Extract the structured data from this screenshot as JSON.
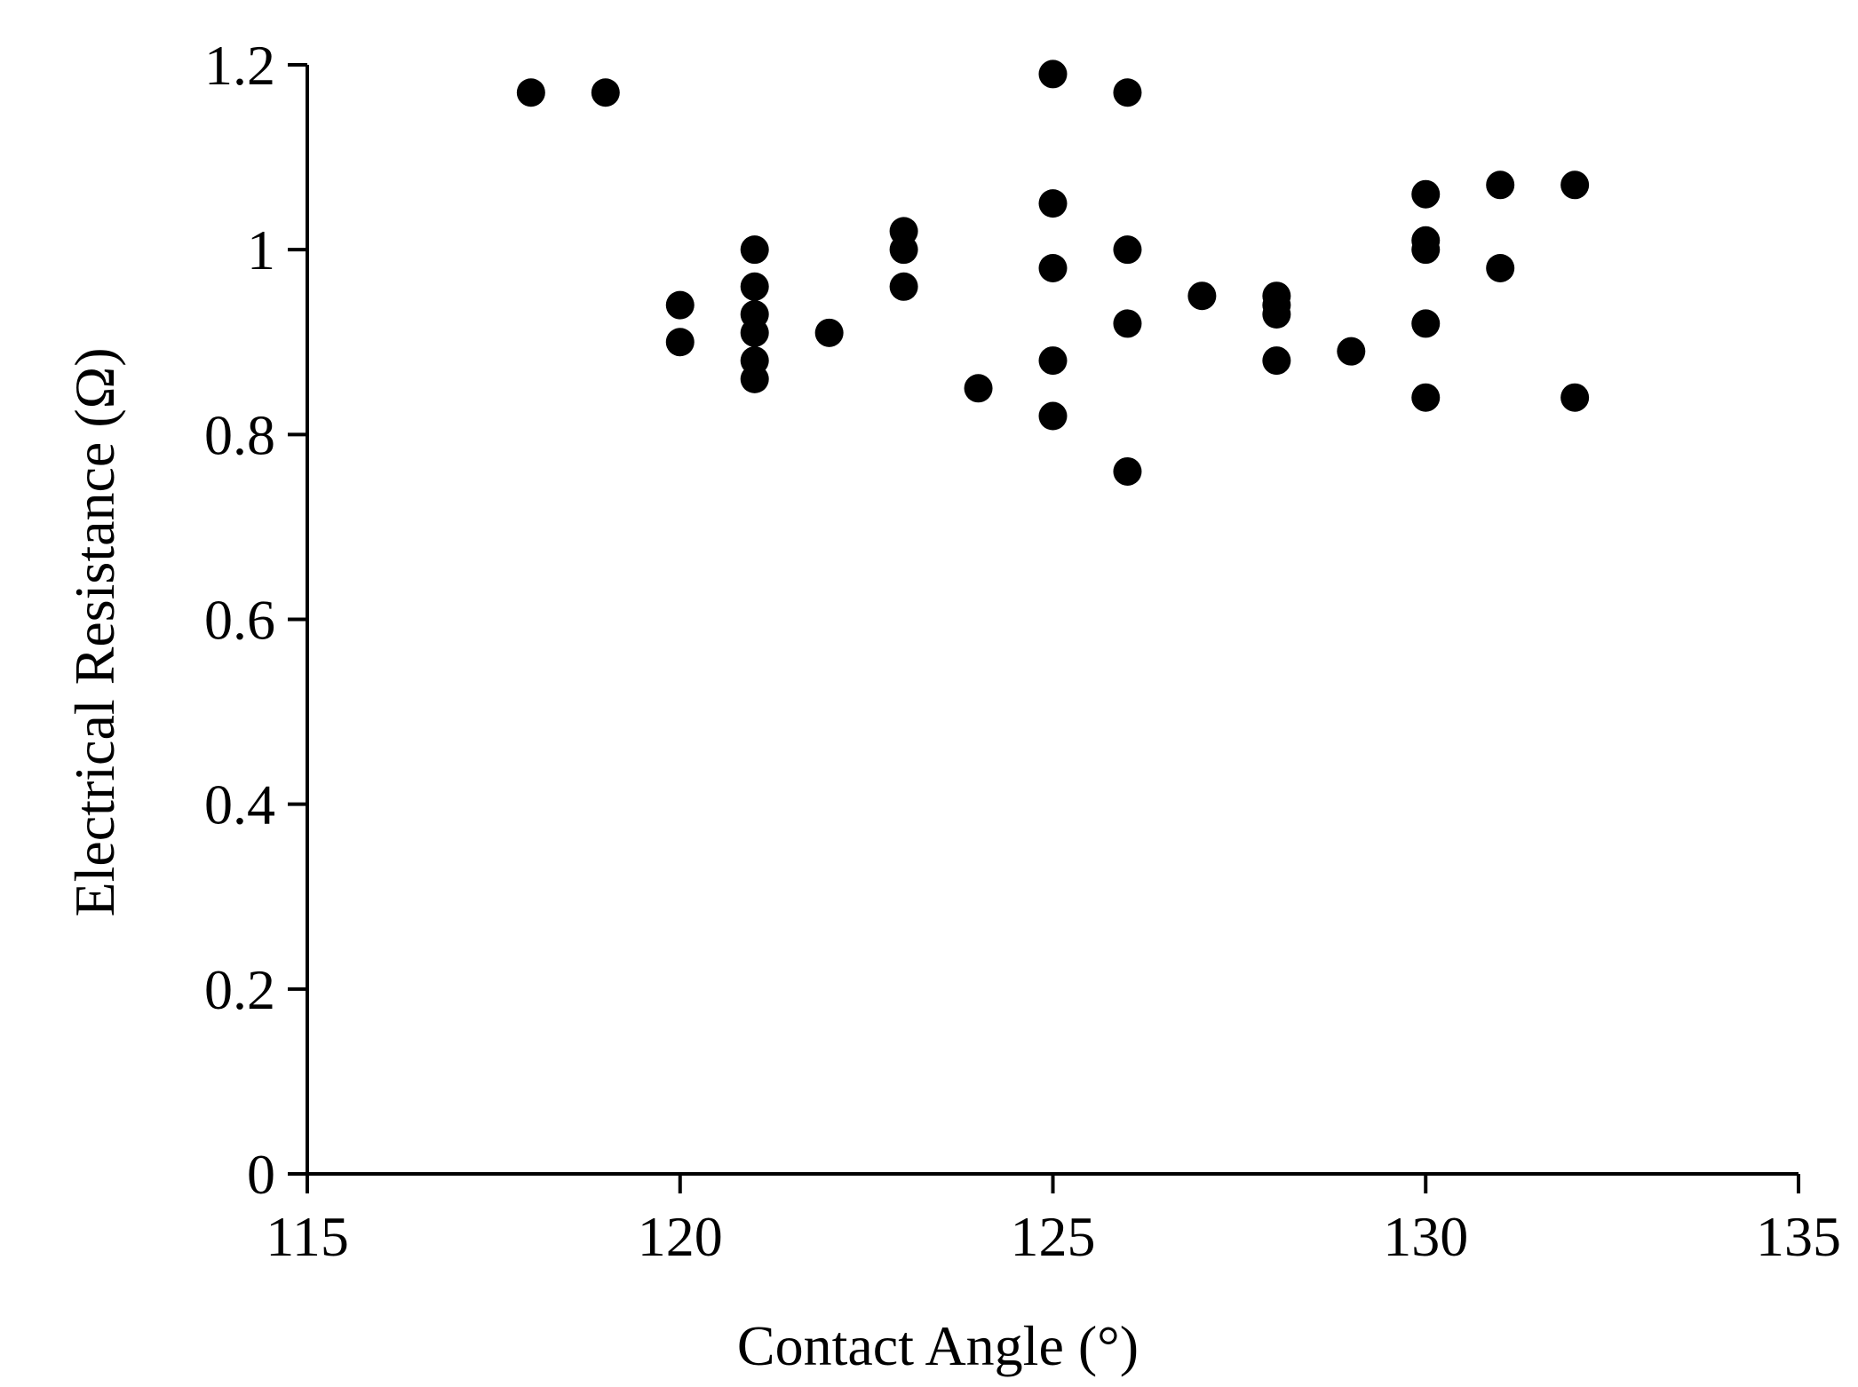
{
  "chart_data": {
    "type": "scatter",
    "title": "",
    "xlabel": "Contact Angle (°)",
    "ylabel": "Electrical Resistance (Ω)",
    "xlim": [
      115,
      135
    ],
    "ylim": [
      0,
      1.2
    ],
    "x_ticks": [
      115,
      120,
      125,
      130,
      135
    ],
    "y_ticks": [
      0,
      0.2,
      0.4,
      0.6,
      0.8,
      1,
      1.2
    ],
    "x_tick_labels": [
      "115",
      "120",
      "125",
      "130",
      "135"
    ],
    "y_tick_labels": [
      "0",
      "0.2",
      "0.4",
      "0.6",
      "0.8",
      "1",
      "1.2"
    ],
    "grid": false,
    "legend": "none",
    "marker_color": "#000000",
    "axis_color": "#000000",
    "points": [
      {
        "x": 118,
        "y": 1.17
      },
      {
        "x": 119,
        "y": 1.17
      },
      {
        "x": 120,
        "y": 0.94
      },
      {
        "x": 120,
        "y": 0.9
      },
      {
        "x": 121,
        "y": 1.0
      },
      {
        "x": 121,
        "y": 0.96
      },
      {
        "x": 121,
        "y": 0.93
      },
      {
        "x": 121,
        "y": 0.91
      },
      {
        "x": 121,
        "y": 0.88
      },
      {
        "x": 121,
        "y": 0.86
      },
      {
        "x": 122,
        "y": 0.91
      },
      {
        "x": 123,
        "y": 1.02
      },
      {
        "x": 123,
        "y": 1.0
      },
      {
        "x": 123,
        "y": 0.96
      },
      {
        "x": 124,
        "y": 0.85
      },
      {
        "x": 125,
        "y": 1.19
      },
      {
        "x": 125,
        "y": 1.05
      },
      {
        "x": 125,
        "y": 0.98
      },
      {
        "x": 125,
        "y": 0.88
      },
      {
        "x": 125,
        "y": 0.82
      },
      {
        "x": 126,
        "y": 1.17
      },
      {
        "x": 126,
        "y": 1.0
      },
      {
        "x": 126,
        "y": 0.92
      },
      {
        "x": 126,
        "y": 0.76
      },
      {
        "x": 127,
        "y": 0.95
      },
      {
        "x": 128,
        "y": 0.95
      },
      {
        "x": 128,
        "y": 0.94
      },
      {
        "x": 128,
        "y": 0.93
      },
      {
        "x": 128,
        "y": 0.88
      },
      {
        "x": 129,
        "y": 0.89
      },
      {
        "x": 130,
        "y": 1.06
      },
      {
        "x": 130,
        "y": 1.01
      },
      {
        "x": 130,
        "y": 1.0
      },
      {
        "x": 130,
        "y": 0.92
      },
      {
        "x": 130,
        "y": 0.84
      },
      {
        "x": 131,
        "y": 1.07
      },
      {
        "x": 131,
        "y": 0.98
      },
      {
        "x": 132,
        "y": 1.07
      },
      {
        "x": 132,
        "y": 0.84
      }
    ]
  }
}
